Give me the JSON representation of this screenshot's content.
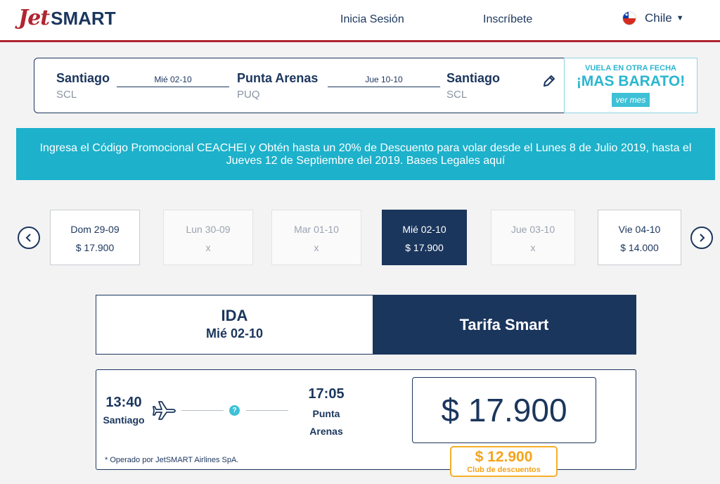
{
  "header": {
    "logo_jet": "Jet",
    "logo_smart": "SMART",
    "login": "Inicia Sesión",
    "signup": "Inscríbete",
    "country": "Chile"
  },
  "route": {
    "origin_city": "Santiago",
    "origin_code": "SCL",
    "outbound_date": "Mié 02-10",
    "mid_city": "Punta Arenas",
    "mid_code": "PUQ",
    "return_date": "Jue 10-10",
    "dest_city": "Santiago",
    "dest_code": "SCL"
  },
  "promo_side": {
    "top": "VUELA EN OTRA FECHA",
    "big": "¡MAS BARATO!",
    "button": "ver mes"
  },
  "banner": {
    "text": "Ingresa el Código Promocional CEACHEI y Obtén hasta un 20% de Descuento para volar desde el Lunes 8 de Julio 2019, hasta el Jueves 12 de Septiembre del 2019. Bases Legales aquí"
  },
  "dates": [
    {
      "label": "Dom 29-09",
      "price": "$ 17.900",
      "state": "available"
    },
    {
      "label": "Lun 30-09",
      "price": "x",
      "state": "disabled"
    },
    {
      "label": "Mar 01-10",
      "price": "x",
      "state": "disabled"
    },
    {
      "label": "Mié 02-10",
      "price": "$ 17.900",
      "state": "selected"
    },
    {
      "label": "Jue 03-10",
      "price": "x",
      "state": "disabled"
    },
    {
      "label": "Vie 04-10",
      "price": "$ 14.000",
      "state": "available"
    }
  ],
  "tabs": {
    "ida_title": "IDA",
    "ida_date": "Mié 02-10",
    "fare": "Tarifa Smart"
  },
  "flight": {
    "dep_time": "13:40",
    "dep_city": "Santiago",
    "stop_symbol": "?",
    "arr_time": "17:05",
    "arr_city": "Punta Arenas",
    "operator": "* Operado por JetSMART Airlines SpA.",
    "price": "$ 17.900",
    "club_price": "$ 12.900",
    "club_label": "Club de descuentos"
  },
  "colors": {
    "navy": "#1b365d",
    "brand_red": "#b0252f",
    "cyan": "#1db1cb",
    "gold": "#f5b026"
  }
}
